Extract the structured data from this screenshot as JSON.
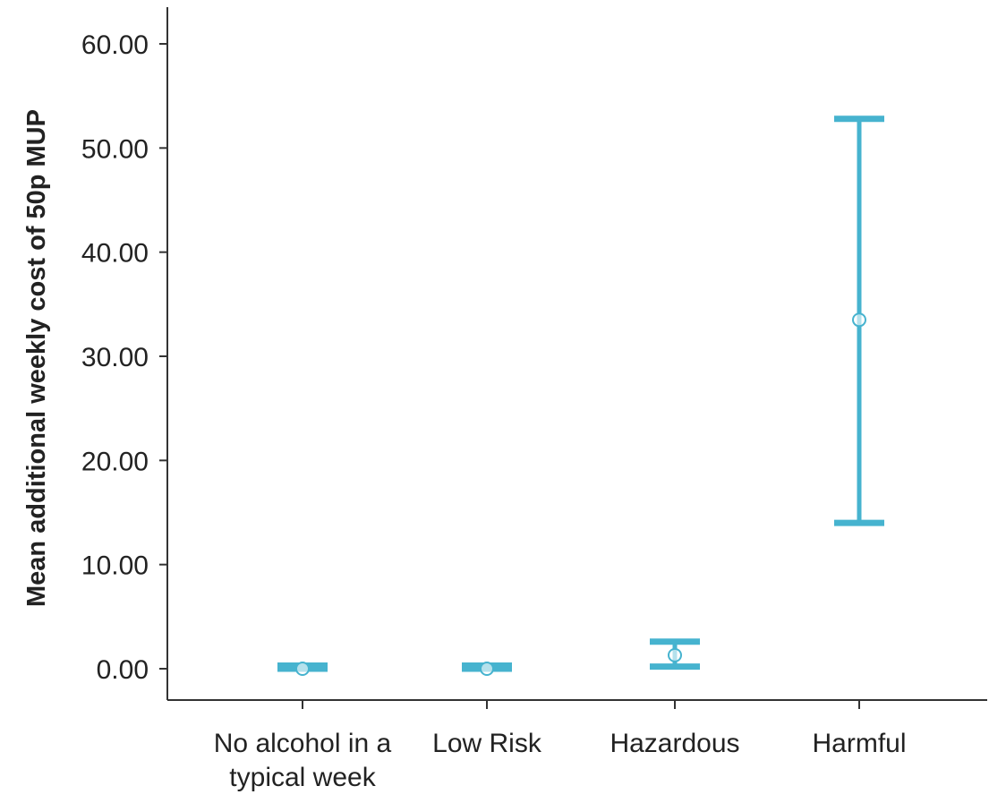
{
  "chart_data": {
    "type": "errorbar",
    "xlabel": "",
    "ylabel": "Mean additional weekly cost of 50p MUP",
    "ylim": [
      0,
      60
    ],
    "yticks": [
      "0.00",
      "10.00",
      "20.00",
      "30.00",
      "40.00",
      "50.00",
      "60.00"
    ],
    "categories": [
      [
        "No alcohol in a",
        "typical week"
      ],
      [
        "Low Risk"
      ],
      [
        "Hazardous"
      ],
      [
        "Harmful"
      ]
    ],
    "series": [
      {
        "mean": [
          0.0,
          0.0,
          1.3,
          33.5
        ],
        "lower": [
          0.0,
          0.0,
          0.2,
          14.0
        ],
        "upper": [
          0.3,
          0.3,
          2.6,
          52.8
        ]
      }
    ],
    "color": "#46b3cf",
    "grid": false,
    "legend": "none"
  }
}
